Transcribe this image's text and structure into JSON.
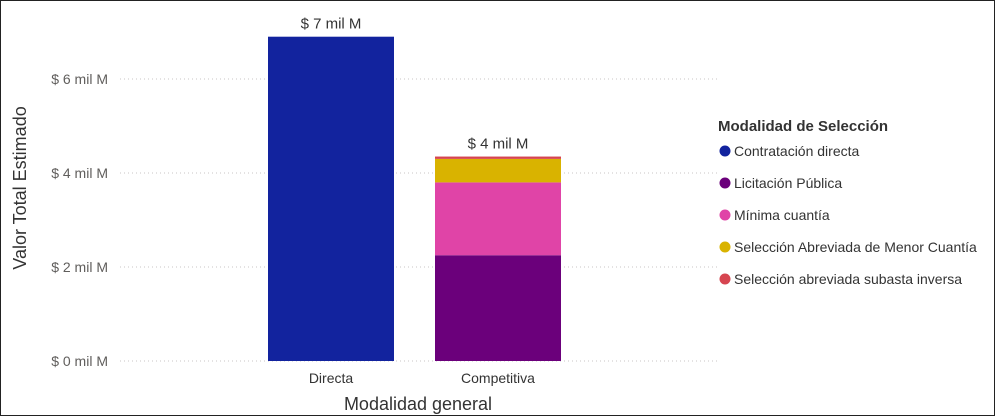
{
  "chart_data": {
    "type": "bar",
    "stacked": true,
    "categories": [
      "Directa",
      "Competitiva"
    ],
    "series": [
      {
        "name": "Contratación directa",
        "color": "#12239E",
        "values": [
          6.9,
          0
        ]
      },
      {
        "name": "Licitación Pública",
        "color": "#6B007B",
        "values": [
          0,
          2.25
        ]
      },
      {
        "name": "Mínima cuantía",
        "color": "#E044A7",
        "values": [
          0,
          1.55
        ]
      },
      {
        "name": "Selección Abreviada de Menor Cuantía",
        "color": "#D9B300",
        "values": [
          0,
          0.5
        ]
      },
      {
        "name": "Selección abreviada subasta inversa",
        "color": "#D64550",
        "values": [
          0,
          0.05
        ]
      }
    ],
    "totals": [
      {
        "category": "Directa",
        "label": "$ 7 mil M"
      },
      {
        "category": "Competitiva",
        "label": "$ 4 mil M"
      }
    ],
    "xlabel": "Modalidad general",
    "ylabel": "Valor Total Estimado",
    "ylim": [
      0,
      7
    ],
    "yticks": [
      {
        "value": 0,
        "label": "$ 0 mil M"
      },
      {
        "value": 2,
        "label": "$ 2 mil M"
      },
      {
        "value": 4,
        "label": "$ 4 mil M"
      },
      {
        "value": 6,
        "label": "$ 6 mil M"
      }
    ],
    "grid": true,
    "legend": {
      "title": "Modalidad de Selección",
      "position": "right"
    }
  }
}
